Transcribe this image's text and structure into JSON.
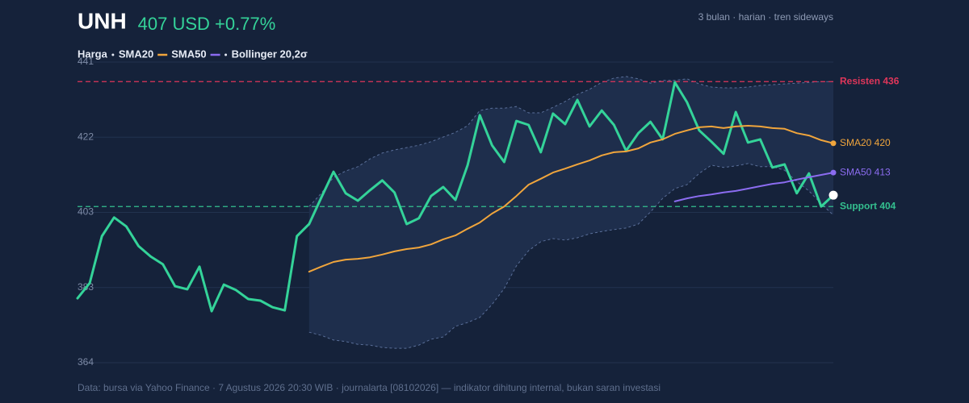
{
  "chart_data": {
    "type": "line",
    "title": "UNH",
    "subtitle": "407 USD +0.77%",
    "note": "3 bulan · harian · tren sideways",
    "source": "Data: bursa via Yahoo Finance · 7 Agustus 2026 20:30 WIB · journalarta [08102026] — indikator dihitung internal, bukan saran investasi",
    "ylim": [
      364,
      441
    ],
    "yticks": [
      {
        "value": 364,
        "label": "364"
      },
      {
        "value": 383.25,
        "label": "383"
      },
      {
        "value": 402.5,
        "label": "403"
      },
      {
        "value": 421.75,
        "label": "422"
      },
      {
        "value": 441,
        "label": "441"
      }
    ],
    "grid": true,
    "series": [
      {
        "name": "Harga",
        "color": "#34d399",
        "values": [
          380.5,
          384.4,
          396.4,
          401.2,
          398.9,
          393.9,
          391.2,
          389.2,
          383.6,
          382.8,
          388.6,
          377.2,
          384.0,
          382.6,
          380.3,
          379.9,
          378.2,
          377.4,
          396.4,
          399.5,
          406.3,
          412.9,
          407.4,
          405.5,
          408.2,
          410.7,
          407.6,
          399.5,
          401.0,
          406.7,
          409.0,
          405.7,
          414.6,
          427.4,
          419.7,
          415.4,
          425.9,
          424.9,
          417.9,
          427.8,
          425.1,
          431.3,
          424.5,
          428.6,
          424.9,
          418.3,
          422.8,
          425.7,
          421.2,
          435.8,
          430.7,
          423.5,
          420.6,
          417.5,
          428.2,
          420.4,
          421.2,
          414.0,
          414.8,
          407.4,
          412.5,
          404.0,
          406.9
        ]
      },
      {
        "name": "SMA20",
        "color": "#f0a53c",
        "end_label": "SMA20 420",
        "values": [
          null,
          null,
          null,
          null,
          null,
          null,
          null,
          null,
          null,
          null,
          null,
          null,
          null,
          null,
          null,
          null,
          null,
          null,
          null,
          387.3,
          388.6,
          389.8,
          390.4,
          390.6,
          391.0,
          391.7,
          392.5,
          393.1,
          393.5,
          394.3,
          395.6,
          396.6,
          398.3,
          399.9,
          402.2,
          404.0,
          406.7,
          409.6,
          411.1,
          412.7,
          413.7,
          414.8,
          415.8,
          417.1,
          417.9,
          418.1,
          418.9,
          420.4,
          421.2,
          422.6,
          423.5,
          424.3,
          424.5,
          424.1,
          424.5,
          424.7,
          424.5,
          424.1,
          423.9,
          422.8,
          422.2,
          421.0,
          420.2
        ]
      },
      {
        "name": "SMA50",
        "color": "#8b6cf0",
        "end_label": "SMA50 413",
        "values": [
          null,
          null,
          null,
          null,
          null,
          null,
          null,
          null,
          null,
          null,
          null,
          null,
          null,
          null,
          null,
          null,
          null,
          null,
          null,
          null,
          null,
          null,
          null,
          null,
          null,
          null,
          null,
          null,
          null,
          null,
          null,
          null,
          null,
          null,
          null,
          null,
          null,
          null,
          null,
          null,
          null,
          null,
          null,
          null,
          null,
          null,
          null,
          null,
          null,
          405.3,
          406.1,
          406.7,
          407.1,
          407.6,
          408.0,
          408.6,
          409.2,
          409.8,
          410.2,
          410.9,
          411.5,
          412.1,
          412.7
        ]
      }
    ],
    "band": {
      "name": "Bollinger 20,2σ",
      "color": "#5a6f99",
      "fill": "#1e2e4c",
      "upper": [
        null,
        null,
        null,
        null,
        null,
        null,
        null,
        null,
        null,
        null,
        null,
        null,
        null,
        null,
        null,
        null,
        null,
        null,
        null,
        404.0,
        407.4,
        411.5,
        413.1,
        414.2,
        416.2,
        417.7,
        418.5,
        419.1,
        419.7,
        420.6,
        421.8,
        423.0,
        424.7,
        428.6,
        429.2,
        429.2,
        429.6,
        428.0,
        428.0,
        429.4,
        430.9,
        432.7,
        434.0,
        435.8,
        436.9,
        437.3,
        436.7,
        435.6,
        436.3,
        436.3,
        436.7,
        435.4,
        434.6,
        434.4,
        434.4,
        434.6,
        435.0,
        435.2,
        435.4,
        435.6,
        435.8,
        436.0,
        436.0
      ],
      "lower": [
        null,
        null,
        null,
        null,
        null,
        null,
        null,
        null,
        null,
        null,
        null,
        null,
        null,
        null,
        null,
        null,
        null,
        null,
        null,
        371.8,
        371.0,
        369.8,
        369.4,
        368.7,
        368.5,
        367.9,
        367.7,
        367.7,
        368.5,
        370.0,
        370.6,
        373.3,
        374.3,
        375.6,
        378.9,
        383.0,
        388.8,
        392.7,
        395.0,
        395.8,
        395.4,
        396.0,
        397.0,
        397.6,
        398.1,
        398.5,
        399.5,
        402.6,
        406.1,
        408.6,
        409.6,
        412.5,
        414.6,
        414.0,
        414.4,
        415.0,
        414.2,
        414.2,
        413.3,
        410.4,
        408.0,
        404.7,
        401.8
      ]
    },
    "levels": [
      {
        "label": "Resisten 436",
        "value": 436,
        "color": "#e0365a"
      },
      {
        "label": "Support 404",
        "value": 404,
        "color": "#34c08f"
      }
    ]
  }
}
